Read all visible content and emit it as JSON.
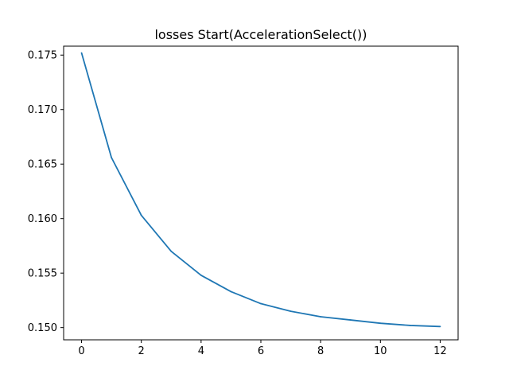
{
  "chart_data": {
    "type": "line",
    "title": "losses Start(AccelerationSelect())",
    "xlabel": "",
    "ylabel": "",
    "xlim": [
      -0.6,
      12.6
    ],
    "ylim": [
      0.14888,
      0.17582
    ],
    "xticks": [
      0,
      2,
      4,
      6,
      8,
      10,
      12
    ],
    "xtick_labels": [
      "0",
      "2",
      "4",
      "6",
      "8",
      "10",
      "12"
    ],
    "yticks": [
      0.15,
      0.155,
      0.16,
      0.165,
      0.17,
      0.175
    ],
    "ytick_labels": [
      "0.150",
      "0.155",
      "0.160",
      "0.165",
      "0.170",
      "0.175"
    ],
    "grid": false,
    "legend": "none",
    "series": [
      {
        "color": "#1f77b4",
        "x": [
          0,
          1,
          2,
          3,
          4,
          5,
          6,
          7,
          8,
          9,
          10,
          11,
          12
        ],
        "y": [
          0.1752,
          0.1656,
          0.1603,
          0.157,
          0.1548,
          0.1533,
          0.1522,
          0.1515,
          0.151,
          0.1507,
          0.1504,
          0.1502,
          0.1501
        ]
      }
    ]
  }
}
